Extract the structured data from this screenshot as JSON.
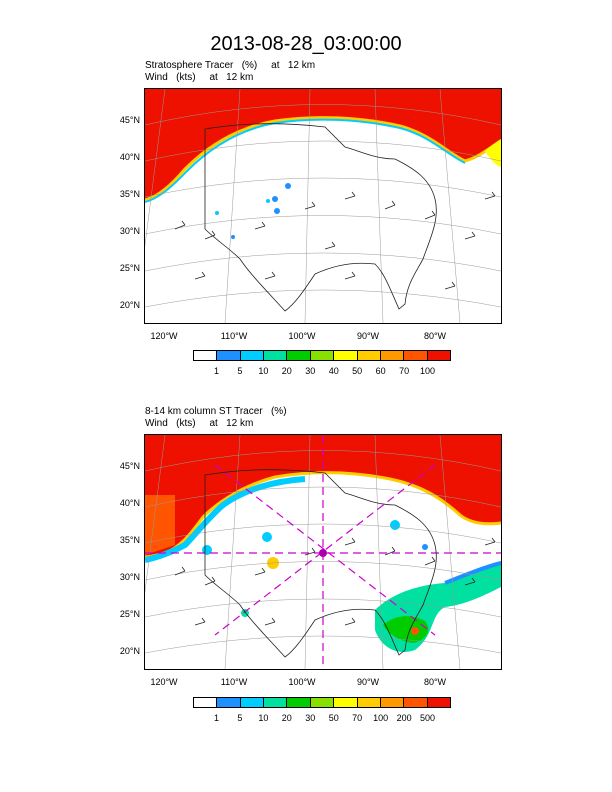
{
  "title": "2013-08-28_03:00:00",
  "panels": [
    {
      "subtitle1": "Stratosphere Tracer   (%)     at   12 km",
      "subtitle2": "Wind   (kts)     at   12 km",
      "lat_labels": [
        "45°N",
        "40°N",
        "35°N",
        "30°N",
        "25°N",
        "20°N"
      ],
      "lon_labels": [
        "120°W",
        "110°W",
        "100°W",
        "90°W",
        "80°W"
      ],
      "colorbar_labels": [
        "1",
        "5",
        "10",
        "20",
        "30",
        "40",
        "50",
        "60",
        "70",
        "100"
      ],
      "colorbar_colors": [
        "#ffffff",
        "#1e90ff",
        "#00ccff",
        "#00e0a0",
        "#00cc00",
        "#88e000",
        "#ffff00",
        "#ffcc00",
        "#ff9900",
        "#ff5500",
        "#ee1100"
      ]
    },
    {
      "subtitle1": "8-14 km column ST Tracer   (%)",
      "subtitle2": "Wind   (kts)     at   12 km",
      "lat_labels": [
        "45°N",
        "40°N",
        "35°N",
        "30°N",
        "25°N",
        "20°N"
      ],
      "lon_labels": [
        "120°W",
        "110°W",
        "100°W",
        "90°W",
        "80°W"
      ],
      "colorbar_labels": [
        "1",
        "5",
        "10",
        "20",
        "30",
        "50",
        "70",
        "100",
        "200",
        "500"
      ],
      "colorbar_colors": [
        "#ffffff",
        "#1e90ff",
        "#00ccff",
        "#00e0a0",
        "#00cc00",
        "#88e000",
        "#ffff00",
        "#ffcc00",
        "#ff9900",
        "#ff5500",
        "#ee1100"
      ]
    }
  ]
}
